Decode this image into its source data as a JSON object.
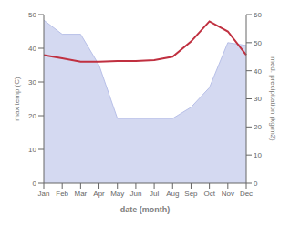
{
  "chart_data": {
    "type": "line",
    "xlabel": "date (month)",
    "ylabel": "max temp (C)",
    "y2label": "med. precipitation (kg/m2)",
    "categories": [
      "Jan",
      "Feb",
      "Mar",
      "Apr",
      "May",
      "Jun",
      "Jul",
      "Aug",
      "Sep",
      "Oct",
      "Nov",
      "Dec"
    ],
    "series": [
      {
        "type": "area",
        "axis": "y2",
        "color": "#b8c0e8",
        "values": [
          58,
          53,
          53,
          42,
          23,
          23,
          23,
          23,
          27,
          34,
          50,
          49
        ]
      },
      {
        "type": "line",
        "color": "#c03040",
        "values": [
          38.0,
          37.0,
          36.0,
          36.0,
          36.2,
          36.2,
          36.5,
          37.5,
          42.0,
          48.0,
          45.0,
          38.0
        ]
      }
    ],
    "ylim": [
      0,
      50
    ],
    "yticks": [
      0,
      10,
      20,
      30,
      40,
      50
    ],
    "y2lim": [
      0,
      60
    ],
    "y2ticks": [
      0,
      10,
      20,
      30,
      40,
      50,
      60
    ],
    "grid": false
  }
}
